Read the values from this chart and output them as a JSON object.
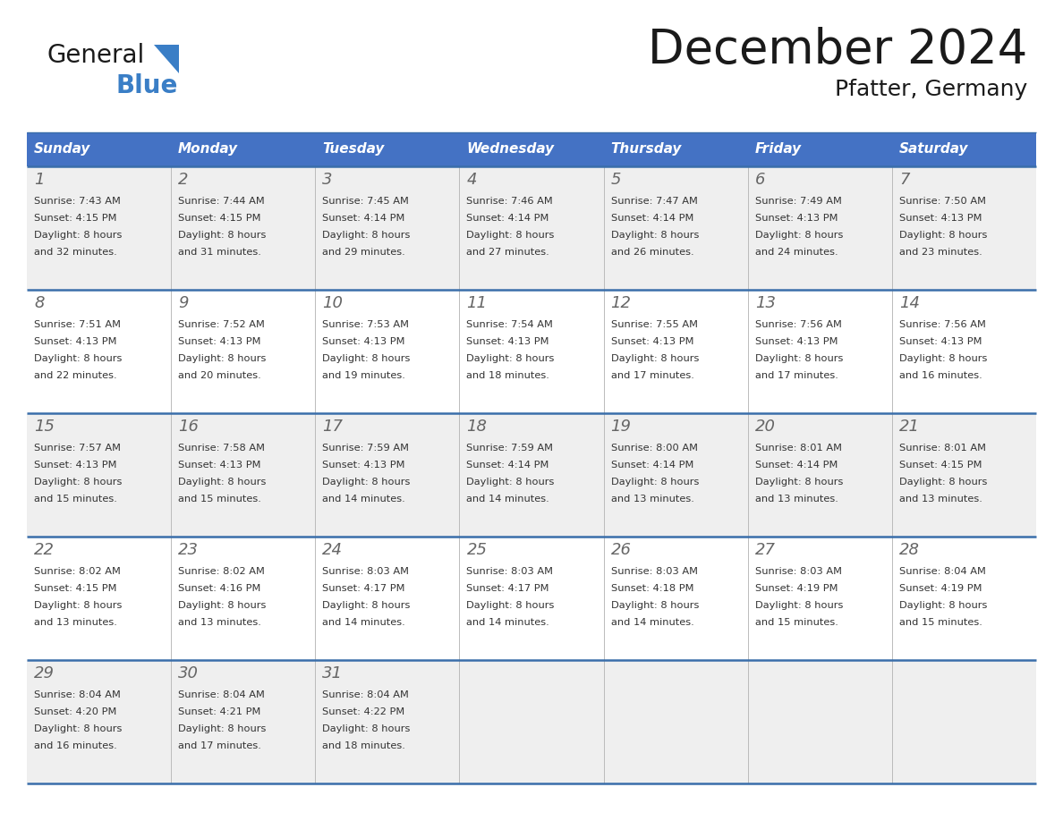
{
  "title": "December 2024",
  "subtitle": "Pfatter, Germany",
  "days_of_week": [
    "Sunday",
    "Monday",
    "Tuesday",
    "Wednesday",
    "Thursday",
    "Friday",
    "Saturday"
  ],
  "header_bg": "#4472C4",
  "header_text": "#FFFFFF",
  "row_bg_odd": "#EFEFEF",
  "row_bg_even": "#FFFFFF",
  "text_color": "#333333",
  "day_num_color": "#666666",
  "grid_color": "#3A6EAA",
  "sep_color": "#CCCCCC",
  "background": "#FFFFFF",
  "calendar_data": [
    [
      {
        "day": 1,
        "sunrise": "7:43 AM",
        "sunset": "4:15 PM",
        "daylight": "8 hours and 32 minutes."
      },
      {
        "day": 2,
        "sunrise": "7:44 AM",
        "sunset": "4:15 PM",
        "daylight": "8 hours and 31 minutes."
      },
      {
        "day": 3,
        "sunrise": "7:45 AM",
        "sunset": "4:14 PM",
        "daylight": "8 hours and 29 minutes."
      },
      {
        "day": 4,
        "sunrise": "7:46 AM",
        "sunset": "4:14 PM",
        "daylight": "8 hours and 27 minutes."
      },
      {
        "day": 5,
        "sunrise": "7:47 AM",
        "sunset": "4:14 PM",
        "daylight": "8 hours and 26 minutes."
      },
      {
        "day": 6,
        "sunrise": "7:49 AM",
        "sunset": "4:13 PM",
        "daylight": "8 hours and 24 minutes."
      },
      {
        "day": 7,
        "sunrise": "7:50 AM",
        "sunset": "4:13 PM",
        "daylight": "8 hours and 23 minutes."
      }
    ],
    [
      {
        "day": 8,
        "sunrise": "7:51 AM",
        "sunset": "4:13 PM",
        "daylight": "8 hours and 22 minutes."
      },
      {
        "day": 9,
        "sunrise": "7:52 AM",
        "sunset": "4:13 PM",
        "daylight": "8 hours and 20 minutes."
      },
      {
        "day": 10,
        "sunrise": "7:53 AM",
        "sunset": "4:13 PM",
        "daylight": "8 hours and 19 minutes."
      },
      {
        "day": 11,
        "sunrise": "7:54 AM",
        "sunset": "4:13 PM",
        "daylight": "8 hours and 18 minutes."
      },
      {
        "day": 12,
        "sunrise": "7:55 AM",
        "sunset": "4:13 PM",
        "daylight": "8 hours and 17 minutes."
      },
      {
        "day": 13,
        "sunrise": "7:56 AM",
        "sunset": "4:13 PM",
        "daylight": "8 hours and 17 minutes."
      },
      {
        "day": 14,
        "sunrise": "7:56 AM",
        "sunset": "4:13 PM",
        "daylight": "8 hours and 16 minutes."
      }
    ],
    [
      {
        "day": 15,
        "sunrise": "7:57 AM",
        "sunset": "4:13 PM",
        "daylight": "8 hours and 15 minutes."
      },
      {
        "day": 16,
        "sunrise": "7:58 AM",
        "sunset": "4:13 PM",
        "daylight": "8 hours and 15 minutes."
      },
      {
        "day": 17,
        "sunrise": "7:59 AM",
        "sunset": "4:13 PM",
        "daylight": "8 hours and 14 minutes."
      },
      {
        "day": 18,
        "sunrise": "7:59 AM",
        "sunset": "4:14 PM",
        "daylight": "8 hours and 14 minutes."
      },
      {
        "day": 19,
        "sunrise": "8:00 AM",
        "sunset": "4:14 PM",
        "daylight": "8 hours and 13 minutes."
      },
      {
        "day": 20,
        "sunrise": "8:01 AM",
        "sunset": "4:14 PM",
        "daylight": "8 hours and 13 minutes."
      },
      {
        "day": 21,
        "sunrise": "8:01 AM",
        "sunset": "4:15 PM",
        "daylight": "8 hours and 13 minutes."
      }
    ],
    [
      {
        "day": 22,
        "sunrise": "8:02 AM",
        "sunset": "4:15 PM",
        "daylight": "8 hours and 13 minutes."
      },
      {
        "day": 23,
        "sunrise": "8:02 AM",
        "sunset": "4:16 PM",
        "daylight": "8 hours and 13 minutes."
      },
      {
        "day": 24,
        "sunrise": "8:03 AM",
        "sunset": "4:17 PM",
        "daylight": "8 hours and 14 minutes."
      },
      {
        "day": 25,
        "sunrise": "8:03 AM",
        "sunset": "4:17 PM",
        "daylight": "8 hours and 14 minutes."
      },
      {
        "day": 26,
        "sunrise": "8:03 AM",
        "sunset": "4:18 PM",
        "daylight": "8 hours and 14 minutes."
      },
      {
        "day": 27,
        "sunrise": "8:03 AM",
        "sunset": "4:19 PM",
        "daylight": "8 hours and 15 minutes."
      },
      {
        "day": 28,
        "sunrise": "8:04 AM",
        "sunset": "4:19 PM",
        "daylight": "8 hours and 15 minutes."
      }
    ],
    [
      {
        "day": 29,
        "sunrise": "8:04 AM",
        "sunset": "4:20 PM",
        "daylight": "8 hours and 16 minutes."
      },
      {
        "day": 30,
        "sunrise": "8:04 AM",
        "sunset": "4:21 PM",
        "daylight": "8 hours and 17 minutes."
      },
      {
        "day": 31,
        "sunrise": "8:04 AM",
        "sunset": "4:22 PM",
        "daylight": "8 hours and 18 minutes."
      },
      null,
      null,
      null,
      null
    ]
  ],
  "logo_general_color": "#1a1a1a",
  "logo_blue_color": "#3A7EC6",
  "logo_triangle_color": "#3A7EC6",
  "title_color": "#1a1a1a",
  "subtitle_color": "#1a1a1a"
}
